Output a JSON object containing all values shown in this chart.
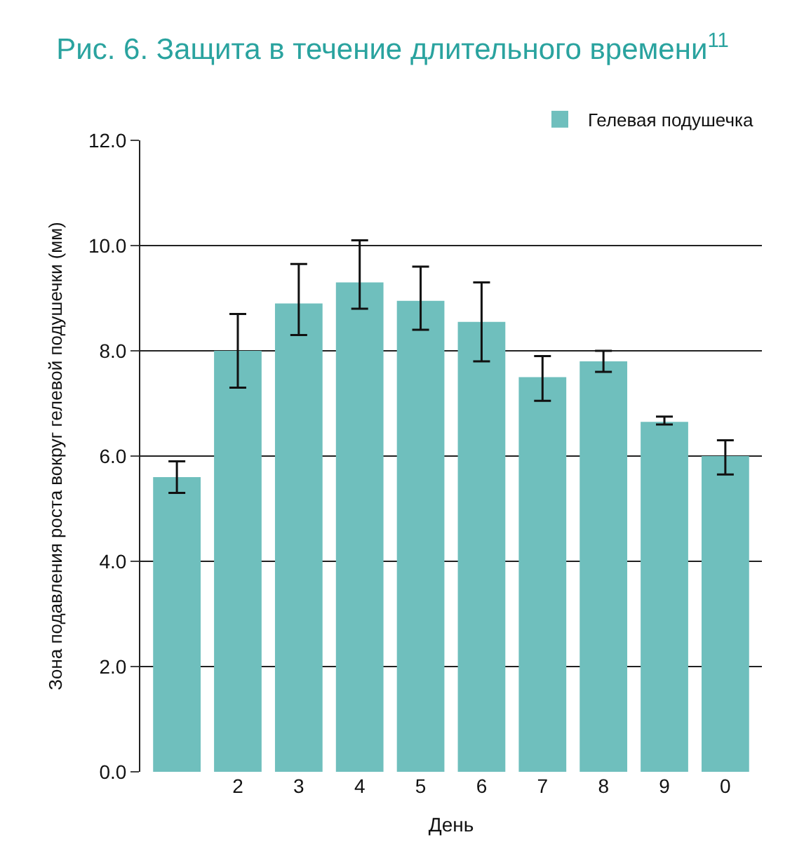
{
  "chart_data": {
    "type": "bar",
    "title": "Рис. 6. Защита в течение длительного времени$^{11}$",
    "xlabel": "День",
    "ylabel": "Зона подавления роста вокруг гелевой подушечки (мм)",
    "categories": [
      null,
      "2",
      "3",
      "4",
      "5",
      "6",
      "7",
      "8",
      "9",
      "0"
    ],
    "series": [
      {
        "name": "Гелевая подушечка",
        "color": "#6fbfbd",
        "values": [
          5.6,
          8.0,
          8.9,
          9.3,
          8.95,
          8.55,
          7.5,
          7.8,
          6.65,
          6.0
        ],
        "errors": [
          [
            5.3,
            5.9
          ],
          [
            7.3,
            8.7
          ],
          [
            8.3,
            9.65
          ],
          [
            8.8,
            10.1
          ],
          [
            8.4,
            9.6
          ],
          [
            7.8,
            9.3
          ],
          [
            7.05,
            7.9
          ],
          [
            7.6,
            8.0
          ],
          [
            6.6,
            6.75
          ],
          [
            5.65,
            6.3
          ]
        ]
      }
    ],
    "ylim": [
      0,
      12
    ],
    "yticks": [
      {
        "value": 0,
        "label": "0.0"
      },
      {
        "value": 2,
        "label": "2.0"
      },
      {
        "value": 4,
        "label": "4.0"
      },
      {
        "value": 6,
        "label": "6.0"
      },
      {
        "value": 8,
        "label": "8.0"
      },
      {
        "value": 10,
        "label": "10.0"
      },
      {
        "value": 12,
        "label": "12.0"
      }
    ],
    "grid": "y",
    "legend": "top right"
  }
}
